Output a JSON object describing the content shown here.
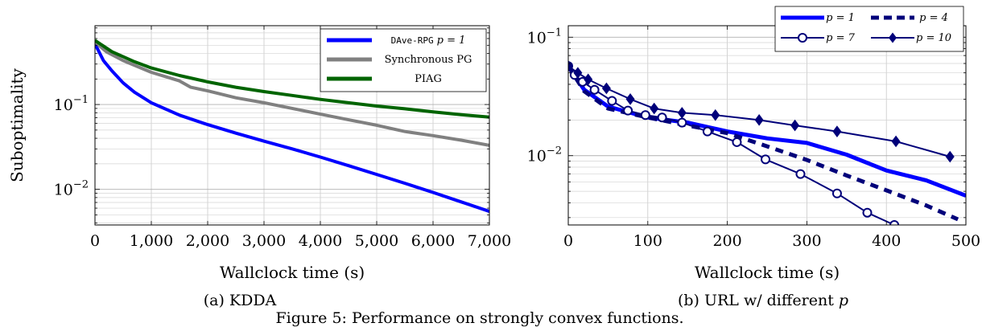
{
  "figure_caption": "Figure 5: Performance on strongly convex functions.",
  "colors": {
    "dave": "#0000ff",
    "sync": "#808080",
    "piag": "#006400",
    "navy": "#00007a"
  },
  "chart_data": [
    {
      "type": "line",
      "caption": "(a) KDDA",
      "xlabel": "Wallclock time (s)",
      "ylabel": "Suboptimality",
      "xlim": [
        0,
        7000
      ],
      "ylim": [
        0.0038,
        0.85
      ],
      "yscale": "log",
      "grid": true,
      "legend_position": "top-right",
      "x_ticks": [
        0,
        1000,
        2000,
        3000,
        4000,
        5000,
        6000,
        7000
      ],
      "x_tick_labels": [
        "0",
        "1,000",
        "2,000",
        "3,000",
        "4,000",
        "5,000",
        "6,000",
        "7,000"
      ],
      "y_ticks": [
        0.1,
        0.01
      ],
      "y_tick_labels": [
        {
          "base": "10",
          "exp": "−1"
        },
        {
          "base": "10",
          "exp": "−2"
        }
      ],
      "series": [
        {
          "name_mono": "DAve-RPG",
          "name_math": "p = 1",
          "color": "#0000ff",
          "x": [
            0,
            150,
            300,
            500,
            700,
            1000,
            1500,
            2000,
            2500,
            3000,
            3500,
            4000,
            4500,
            5000,
            5500,
            6000,
            6500,
            7000
          ],
          "y": [
            0.52,
            0.33,
            0.25,
            0.18,
            0.14,
            0.105,
            0.075,
            0.058,
            0.046,
            0.037,
            0.03,
            0.024,
            0.019,
            0.015,
            0.0118,
            0.0092,
            0.0071,
            0.0055
          ]
        },
        {
          "name": "Synchronous PG",
          "color": "#808080",
          "x": [
            0,
            200,
            500,
            1000,
            1500,
            1700,
            2000,
            2500,
            3000,
            3500,
            4000,
            4500,
            5000,
            5500,
            6000,
            6500,
            7000
          ],
          "y": [
            0.55,
            0.42,
            0.33,
            0.24,
            0.19,
            0.16,
            0.145,
            0.12,
            0.105,
            0.09,
            0.077,
            0.066,
            0.057,
            0.048,
            0.043,
            0.038,
            0.033
          ]
        },
        {
          "name": "PIAG",
          "color": "#006400",
          "x": [
            0,
            300,
            700,
            1000,
            1500,
            2000,
            2500,
            3000,
            3500,
            4000,
            4500,
            5000,
            5500,
            6000,
            6500,
            7000
          ],
          "y": [
            0.57,
            0.42,
            0.32,
            0.27,
            0.22,
            0.185,
            0.16,
            0.142,
            0.128,
            0.115,
            0.105,
            0.096,
            0.089,
            0.082,
            0.076,
            0.071
          ]
        }
      ]
    },
    {
      "type": "line",
      "caption_prefix": "(b) URL w/ different ",
      "caption_var": "p",
      "xlabel": "Wallclock time (s)",
      "ylabel": "",
      "xlim": [
        0,
        500
      ],
      "ylim": [
        0.0026,
        0.125
      ],
      "yscale": "log",
      "grid": true,
      "legend_position": "top-right",
      "x_ticks": [
        0,
        100,
        200,
        300,
        400,
        500
      ],
      "x_tick_labels": [
        "0",
        "100",
        "200",
        "300",
        "400",
        "500"
      ],
      "y_ticks": [
        0.1,
        0.01
      ],
      "y_tick_labels": [
        {
          "base": "10",
          "exp": "−1"
        },
        {
          "base": "10",
          "exp": "−2"
        }
      ],
      "series": [
        {
          "name": "p = 1",
          "color": "#0000ff",
          "style": "thick-solid",
          "x": [
            0,
            20,
            50,
            100,
            150,
            200,
            250,
            300,
            350,
            400,
            450,
            500
          ],
          "y": [
            0.057,
            0.036,
            0.026,
            0.021,
            0.019,
            0.016,
            0.014,
            0.0128,
            0.0102,
            0.0075,
            0.0062,
            0.0046
          ]
        },
        {
          "name": "p = 4",
          "color": "#00007a",
          "style": "thick-dashed",
          "x": [
            0,
            20,
            50,
            100,
            150,
            200,
            250,
            300,
            350,
            400,
            450,
            490
          ],
          "y": [
            0.057,
            0.035,
            0.025,
            0.021,
            0.018,
            0.0155,
            0.012,
            0.0092,
            0.0068,
            0.0051,
            0.0038,
            0.0029
          ]
        },
        {
          "name": "p = 7",
          "color": "#00007a",
          "style": "circle-markers",
          "x": [
            0,
            8,
            18,
            33,
            55,
            75,
            97,
            118,
            143,
            175,
            212,
            248,
            292,
            338,
            376,
            410
          ],
          "y": [
            0.057,
            0.048,
            0.042,
            0.036,
            0.029,
            0.024,
            0.022,
            0.021,
            0.019,
            0.016,
            0.013,
            0.0093,
            0.007,
            0.0048,
            0.0033,
            0.0026
          ]
        },
        {
          "name": "p = 10",
          "color": "#00007a",
          "style": "diamond-markers",
          "x": [
            0,
            12,
            25,
            48,
            78,
            108,
            143,
            185,
            240,
            285,
            338,
            412,
            480
          ],
          "y": [
            0.057,
            0.05,
            0.044,
            0.037,
            0.03,
            0.025,
            0.023,
            0.022,
            0.02,
            0.018,
            0.016,
            0.0132,
            0.0098
          ]
        }
      ]
    }
  ]
}
